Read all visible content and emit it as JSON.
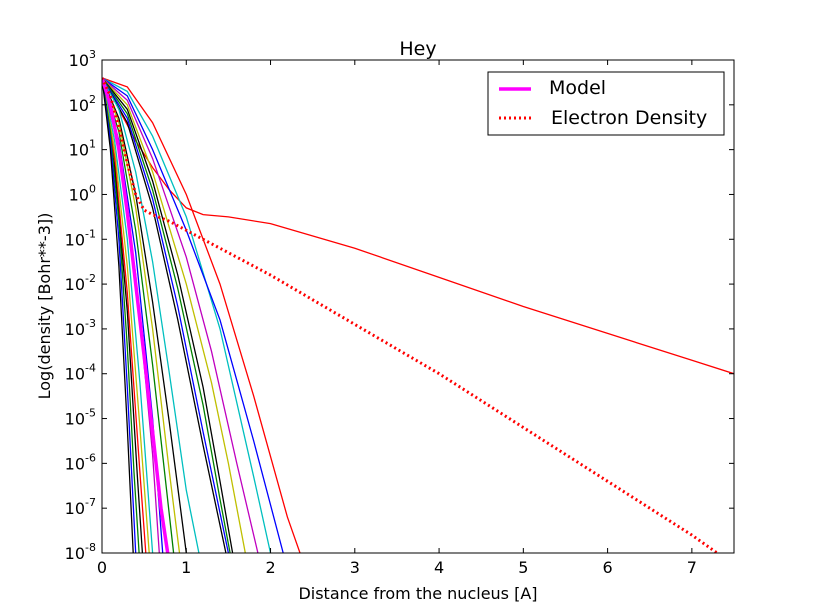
{
  "chart_data": {
    "type": "line",
    "title": "Hey",
    "xlabel": "Distance from the nucleus [A]",
    "ylabel": "Log(density [Bohr**-3])",
    "xlim": [
      0,
      7.5
    ],
    "ylim_log10": [
      -8,
      3
    ],
    "y_scale": "log",
    "grid": false,
    "legend_position": "upper right",
    "x_ticks": [
      "0",
      "1",
      "2",
      "3",
      "4",
      "5",
      "6",
      "7"
    ],
    "y_ticks": [
      {
        "base": "10",
        "exp": "3"
      },
      {
        "base": "10",
        "exp": "2"
      },
      {
        "base": "10",
        "exp": "1"
      },
      {
        "base": "10",
        "exp": "0"
      },
      {
        "base": "10",
        "exp": "-1"
      },
      {
        "base": "10",
        "exp": "-2"
      },
      {
        "base": "10",
        "exp": "-3"
      },
      {
        "base": "10",
        "exp": "-4"
      },
      {
        "base": "10",
        "exp": "-5"
      },
      {
        "base": "10",
        "exp": "-6"
      },
      {
        "base": "10",
        "exp": "-7"
      },
      {
        "base": "10",
        "exp": "-8"
      }
    ],
    "legend": [
      {
        "label": "Model",
        "color": "#ff00ff",
        "style": "solid"
      },
      {
        "label": "Electron Density",
        "color": "#ff0000",
        "style": "dotted"
      }
    ],
    "series": [
      {
        "name": "Model",
        "color": "#ff00ff",
        "style": "solid",
        "x": [
          0,
          0.1,
          0.2,
          0.3,
          0.4,
          0.5,
          0.6,
          0.7,
          0.78
        ],
        "log10_y": [
          2.6,
          2.0,
          1.0,
          -0.4,
          -2.0,
          -3.6,
          -5.3,
          -7.0,
          -8.0
        ]
      },
      {
        "name": "Electron Density",
        "color": "#ff0000",
        "style": "dotted",
        "x": [
          0,
          0.1,
          0.2,
          0.3,
          0.4,
          0.5,
          0.6,
          0.8,
          1.0,
          1.2,
          1.5,
          2.0,
          3.0,
          4.0,
          5.0,
          6.0,
          7.0,
          7.3
        ],
        "log10_y": [
          2.6,
          2.2,
          1.5,
          0.7,
          0.0,
          -0.35,
          -0.45,
          -0.6,
          -0.8,
          -1.0,
          -1.3,
          -1.8,
          -2.9,
          -4.0,
          -5.2,
          -6.4,
          -7.6,
          -8.0
        ]
      },
      {
        "color": "#ff0000",
        "style": "solid",
        "x": [
          0,
          0.1,
          0.2,
          0.4,
          0.6,
          0.8,
          1.0,
          1.2,
          1.5,
          2.0,
          3.0,
          4.0,
          5.0,
          6.0,
          7.0,
          7.5
        ],
        "log10_y": [
          2.6,
          2.3,
          1.9,
          1.2,
          0.6,
          0.1,
          -0.3,
          -0.45,
          -0.5,
          -0.65,
          -1.2,
          -1.85,
          -2.5,
          -3.1,
          -3.7,
          -4.0
        ]
      },
      {
        "color": "#ff0000",
        "style": "solid",
        "x": [
          0,
          0.3,
          0.6,
          1.0,
          1.4,
          1.8,
          2.2,
          2.35
        ],
        "log10_y": [
          2.6,
          2.4,
          1.6,
          0.0,
          -2.0,
          -4.5,
          -7.2,
          -8.0
        ]
      },
      {
        "color": "#00bfbf",
        "style": "solid",
        "x": [
          0,
          0.3,
          0.6,
          1.0,
          1.4,
          1.8,
          2.0
        ],
        "log10_y": [
          2.6,
          2.3,
          1.3,
          -0.5,
          -3.0,
          -6.3,
          -8.0
        ]
      },
      {
        "color": "#0000ff",
        "style": "solid",
        "x": [
          0,
          0.3,
          0.6,
          1.0,
          1.4,
          1.8,
          2.15
        ],
        "log10_y": [
          2.6,
          2.2,
          1.0,
          -0.8,
          -2.8,
          -5.5,
          -8.0
        ]
      },
      {
        "color": "#bf00bf",
        "style": "solid",
        "x": [
          0,
          0.3,
          0.6,
          1.0,
          1.3,
          1.6,
          1.85
        ],
        "log10_y": [
          2.6,
          2.1,
          0.8,
          -1.4,
          -3.5,
          -6.0,
          -8.0
        ]
      },
      {
        "color": "#bfbf00",
        "style": "solid",
        "x": [
          0,
          0.3,
          0.6,
          1.0,
          1.3,
          1.5,
          1.7
        ],
        "log10_y": [
          2.6,
          2.0,
          0.5,
          -2.0,
          -4.2,
          -6.0,
          -8.0
        ]
      },
      {
        "color": "#000000",
        "style": "solid",
        "x": [
          0,
          0.3,
          0.6,
          0.9,
          1.2,
          1.4,
          1.55
        ],
        "log10_y": [
          2.6,
          1.9,
          0.3,
          -1.8,
          -4.3,
          -6.4,
          -8.0
        ]
      },
      {
        "color": "#008000",
        "style": "solid",
        "x": [
          0,
          0.3,
          0.6,
          0.9,
          1.2,
          1.4,
          1.52
        ],
        "log10_y": [
          2.6,
          1.8,
          0.1,
          -2.1,
          -4.7,
          -6.8,
          -8.0
        ]
      },
      {
        "color": "#0000ff",
        "style": "solid",
        "x": [
          0,
          0.3,
          0.6,
          0.9,
          1.2,
          1.5
        ],
        "log10_y": [
          2.6,
          1.7,
          -0.1,
          -2.5,
          -5.3,
          -8.0
        ]
      },
      {
        "color": "#000000",
        "style": "solid",
        "x": [
          0,
          0.3,
          0.6,
          0.9,
          1.2,
          1.47
        ],
        "log10_y": [
          2.6,
          1.6,
          -0.3,
          -2.8,
          -5.6,
          -8.0
        ]
      },
      {
        "color": "#00bfbf",
        "style": "solid",
        "x": [
          0,
          0.2,
          0.4,
          0.6,
          0.8,
          1.0,
          1.15
        ],
        "log10_y": [
          2.6,
          1.9,
          0.5,
          -1.5,
          -4.0,
          -6.6,
          -8.0
        ]
      },
      {
        "color": "#000000",
        "style": "solid",
        "x": [
          0,
          0.2,
          0.4,
          0.6,
          0.8,
          1.0
        ],
        "log10_y": [
          2.6,
          1.7,
          0.0,
          -2.4,
          -5.1,
          -8.0
        ]
      },
      {
        "color": "#bfbf00",
        "style": "solid",
        "x": [
          0,
          0.2,
          0.4,
          0.6,
          0.8,
          0.92
        ],
        "log10_y": [
          2.6,
          1.6,
          -0.3,
          -3.0,
          -6.2,
          -8.0
        ]
      },
      {
        "color": "#008000",
        "style": "solid",
        "x": [
          0,
          0.2,
          0.4,
          0.6,
          0.85
        ],
        "log10_y": [
          2.6,
          1.4,
          -0.8,
          -3.8,
          -8.0
        ]
      },
      {
        "color": "#0000ff",
        "style": "solid",
        "x": [
          0,
          0.2,
          0.4,
          0.6,
          0.72
        ],
        "log10_y": [
          2.6,
          1.2,
          -1.3,
          -5.0,
          -8.0
        ]
      },
      {
        "color": "#bf00bf",
        "style": "solid",
        "x": [
          0,
          0.2,
          0.4,
          0.6,
          0.68
        ],
        "log10_y": [
          2.6,
          1.0,
          -1.8,
          -5.8,
          -8.0
        ]
      },
      {
        "color": "#00bfbf",
        "style": "solid",
        "x": [
          0,
          0.15,
          0.3,
          0.45,
          0.6
        ],
        "log10_y": [
          2.6,
          1.2,
          -1.0,
          -4.2,
          -8.0
        ]
      },
      {
        "color": "#bfbf00",
        "style": "solid",
        "x": [
          0,
          0.15,
          0.3,
          0.45,
          0.56
        ],
        "log10_y": [
          2.6,
          1.0,
          -1.6,
          -5.2,
          -8.0
        ]
      },
      {
        "color": "#ff0000",
        "style": "solid",
        "x": [
          0,
          0.15,
          0.3,
          0.45,
          0.52
        ],
        "log10_y": [
          2.6,
          0.8,
          -2.2,
          -6.2,
          -8.0
        ]
      },
      {
        "color": "#000000",
        "style": "solid",
        "x": [
          0,
          0.15,
          0.3,
          0.42,
          0.48
        ],
        "log10_y": [
          2.6,
          0.6,
          -2.6,
          -6.3,
          -8.0
        ]
      },
      {
        "color": "#008000",
        "style": "solid",
        "x": [
          0,
          0.1,
          0.2,
          0.3,
          0.38,
          0.44
        ],
        "log10_y": [
          2.6,
          1.4,
          -0.6,
          -3.4,
          -6.2,
          -8.0
        ]
      },
      {
        "color": "#0000ff",
        "style": "solid",
        "x": [
          0,
          0.1,
          0.2,
          0.3,
          0.4
        ],
        "log10_y": [
          2.6,
          1.2,
          -1.0,
          -4.3,
          -8.0
        ]
      },
      {
        "color": "#000000",
        "style": "solid",
        "x": [
          0,
          0.1,
          0.2,
          0.3,
          0.37
        ],
        "log10_y": [
          2.6,
          1.0,
          -1.6,
          -5.2,
          -8.0
        ]
      }
    ]
  }
}
